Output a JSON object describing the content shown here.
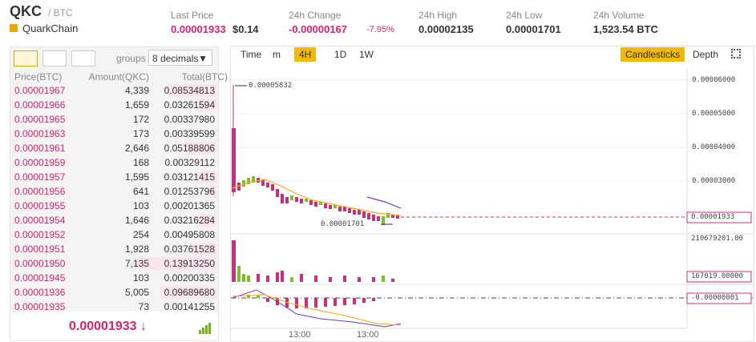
{
  "header": {
    "symbol": "QKC",
    "pair": "/ BTC",
    "name": "QuarkChain",
    "stats": [
      {
        "label": "Last Price",
        "value": "0.00001933",
        "extra": "$0.14"
      },
      {
        "label": "24h Change",
        "value": "-0.00000167",
        "extra": "-7.95%"
      },
      {
        "label": "24h High",
        "value": "0.00002135"
      },
      {
        "label": "24h Low",
        "value": "0.00001701"
      },
      {
        "label": "24h Volume",
        "value": "1,523.54 BTC"
      }
    ]
  },
  "orderbook": {
    "groups_label": "groups",
    "decimals": "8 decimals",
    "headers": [
      "Price(BTC)",
      "Amount(QKC)",
      "Total(BTC)"
    ],
    "rows": [
      [
        "0.00001967",
        "4,339",
        "0.08534813"
      ],
      [
        "0.00001966",
        "1,659",
        "0.03261594"
      ],
      [
        "0.00001965",
        "172",
        "0.00337980"
      ],
      [
        "0.00001963",
        "173",
        "0.00339599"
      ],
      [
        "0.00001961",
        "2,646",
        "0.05188806"
      ],
      [
        "0.00001959",
        "168",
        "0.00329112"
      ],
      [
        "0.00001957",
        "1,595",
        "0.03121415"
      ],
      [
        "0.00001956",
        "641",
        "0.01253796"
      ],
      [
        "0.00001955",
        "103",
        "0.00201365"
      ],
      [
        "0.00001954",
        "1,646",
        "0.03216284"
      ],
      [
        "0.00001952",
        "254",
        "0.00495808"
      ],
      [
        "0.00001951",
        "1,928",
        "0.03761528"
      ],
      [
        "0.00001950",
        "7,135",
        "0.13913250"
      ],
      [
        "0.00001945",
        "103",
        "0.00200335"
      ],
      [
        "0.00001936",
        "5,005",
        "0.09689680"
      ],
      [
        "0.00001935",
        "73",
        "0.00141255"
      ]
    ],
    "last_price": "0.00001933",
    "arrow": "↓"
  },
  "chart": {
    "intervals": [
      "Time",
      "m",
      "4H",
      "1D",
      "1W"
    ],
    "views": [
      "Candlesticks",
      "Depth"
    ],
    "price_axis": [
      "0.00006000",
      "0.00005000",
      "0.00004000",
      "0.00003000"
    ],
    "current_price": "0.00001933",
    "high_note": "0.00005832",
    "low_note": "0.00001701",
    "volume_axis": "210679201.00",
    "volume_current": "167019.00000",
    "macd_current": "-0.00000001",
    "time_labels": [
      "13:00",
      "13:00"
    ]
  }
}
